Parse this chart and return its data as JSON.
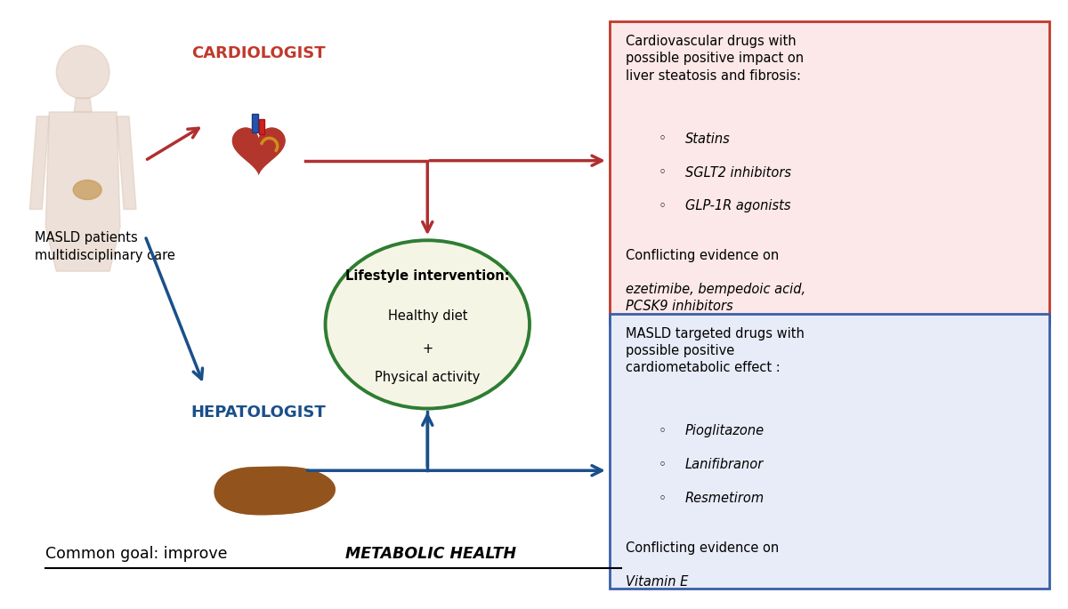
{
  "background_color": "#ffffff",
  "cardiologist_label": "CARDIOLOGIST",
  "cardiologist_color": "#c0392b",
  "hepatologist_label": "HEPATOLOGIST",
  "hepatologist_color": "#1a4f8a",
  "masld_label": "MASLD patients\nmultidisciplinary care",
  "lifestyle_title": "Lifestyle intervention:",
  "lifestyle_border_color": "#2e7d32",
  "lifestyle_bg_color": "#f5f5e6",
  "red_box_bg": "#fce8e8",
  "red_box_border": "#c0392b",
  "red_box_title": "Cardiovascular drugs with\npossible positive impact on\nliver steatosis and fibrosis:",
  "red_box_bullets": [
    "Statins",
    "SGLT2 inhibitors",
    "GLP-1R agonists"
  ],
  "red_box_conflict_normal": "Conflicting evidence on",
  "red_box_conflict_italic": "ezetimibe, bempedoic acid,\nPCSK9 inhibitors",
  "blue_box_bg": "#e8ecf8",
  "blue_box_border": "#3a5fa8",
  "blue_box_title": "MASLD targeted drugs with\npossible positive\ncardiometabolic effect :",
  "blue_box_bullets": [
    "Pioglitazone",
    "Lanifibranor",
    "Resmetirom"
  ],
  "blue_box_conflict_normal": "Conflicting evidence on",
  "blue_box_conflict_italic": "Vitamin E",
  "footer_normal": "Common goal: improve ",
  "footer_italic_bold": "METABOLIC HEALTH",
  "red_arrow_color": "#b03030",
  "blue_arrow_color": "#1a4f8a",
  "green_ellipse_color": "#2e7d32"
}
